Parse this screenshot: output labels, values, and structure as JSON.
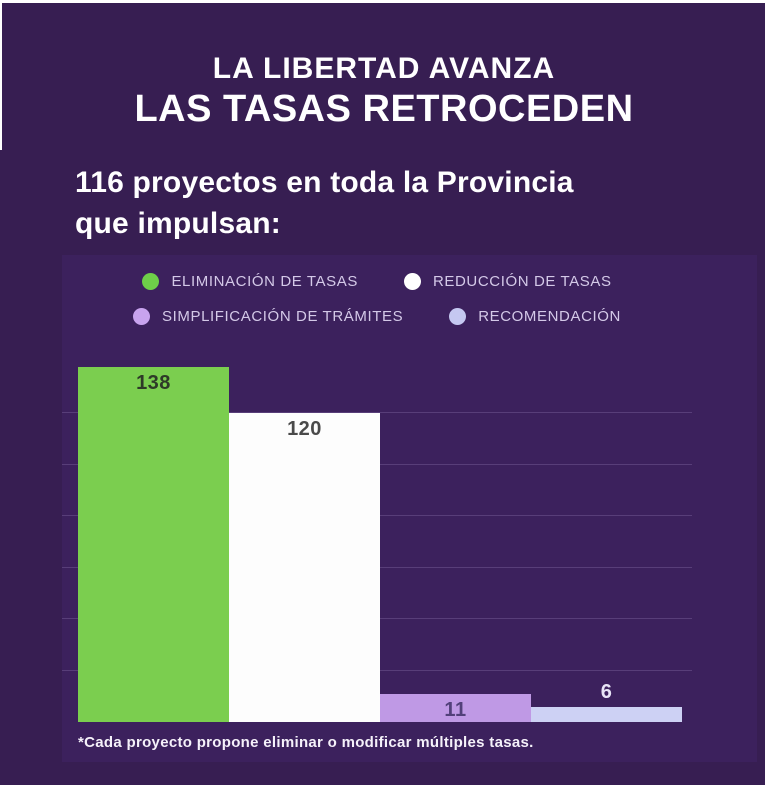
{
  "page": {
    "background": "#371e52",
    "panel_background": "#3c215d",
    "frame_border_color": "#ffffff"
  },
  "header": {
    "title_line1": "LA LIBERTAD AVANZA",
    "title_line2": "LAS TASAS RETROCEDEN",
    "subtitle_line1": "116 proyectos en toda la Provincia",
    "subtitle_line2": "que impulsan:"
  },
  "legend": {
    "items": [
      {
        "label": "ELIMINACIÓN DE TASAS",
        "color": "#6ece49"
      },
      {
        "label": "REDUCCIÓN DE TASAS",
        "color": "#ffffff"
      },
      {
        "label": "SIMPLIFICACIÓN DE TRÁMITES",
        "color": "#c8a3ee"
      },
      {
        "label": "RECOMENDACIÓN",
        "color": "#c5c8f1"
      }
    ]
  },
  "chart_data": {
    "type": "bar",
    "title": "LAS TASAS RETROCEDEN",
    "categories": [
      "ELIMINACIÓN DE TASAS",
      "REDUCCIÓN DE TASAS",
      "SIMPLIFICACIÓN DE TRÁMITES",
      "RECOMENDACIÓN"
    ],
    "values": [
      138,
      120,
      11,
      6
    ],
    "bar_colors": [
      "#7bce4f",
      "#fdfdfd",
      "#bf99e5",
      "#cdd1f4"
    ],
    "value_label_colors": [
      "#2e3a28",
      "#4a4a4a",
      "#52407a",
      "#e8e4f6"
    ],
    "ylim": [
      0,
      140
    ],
    "gridline_values": [
      20,
      40,
      60,
      80,
      100,
      120
    ],
    "grid": true,
    "legend_position": "top",
    "xlabel": "",
    "ylabel": ""
  },
  "footnote": "*Cada proyecto propone eliminar o modificar múltiples tasas."
}
